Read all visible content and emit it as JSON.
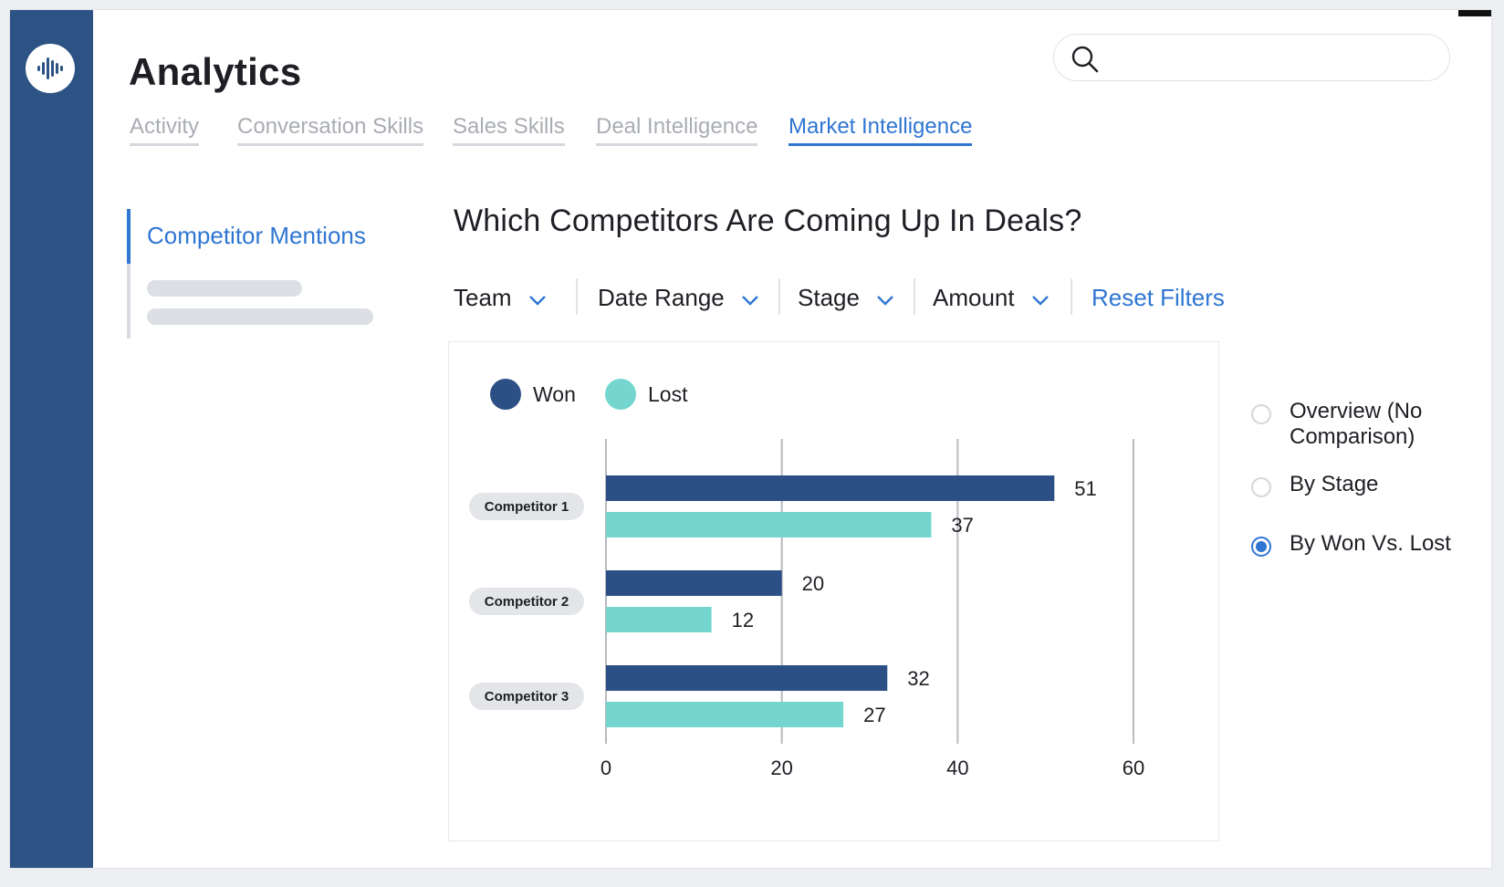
{
  "app": {
    "title": "Analytics",
    "logo_icon": "soundwave-icon"
  },
  "search": {
    "placeholder": "",
    "icon": "search-icon"
  },
  "tabs": [
    {
      "label": "Activity",
      "active": false
    },
    {
      "label": "Conversation Skills",
      "active": false
    },
    {
      "label": "Sales Skills",
      "active": false
    },
    {
      "label": "Deal Intelligence",
      "active": false
    },
    {
      "label": "Market Intelligence",
      "active": true
    }
  ],
  "subnav": {
    "active_label": "Competitor Mentions"
  },
  "main": {
    "question": "Which Competitors Are Coming Up In Deals?"
  },
  "filters": {
    "team": "Team",
    "date_range": "Date Range",
    "stage": "Stage",
    "amount": "Amount",
    "reset": "Reset Filters"
  },
  "view_options": [
    {
      "label": "Overview (No Comparison)",
      "selected": false
    },
    {
      "label": "By Stage",
      "selected": false
    },
    {
      "label": "By Won Vs. Lost",
      "selected": true
    }
  ],
  "colors": {
    "sidebar": "#2c5383",
    "accent": "#2f76d2",
    "won": "#2c4f86",
    "lost": "#74d6cf"
  },
  "chart_data": {
    "type": "bar",
    "orientation": "horizontal",
    "categories": [
      "Competitor 1",
      "Competitor 2",
      "Competitor 3"
    ],
    "series": [
      {
        "name": "Won",
        "values": [
          51,
          20,
          32
        ],
        "color": "#2c4f86"
      },
      {
        "name": "Lost",
        "values": [
          37,
          12,
          27
        ],
        "color": "#74d6cf"
      }
    ],
    "xlim": [
      0,
      60
    ],
    "xticks": [
      0,
      20,
      40,
      60
    ],
    "grid": true,
    "legend": "top-left",
    "data_labels": true
  }
}
